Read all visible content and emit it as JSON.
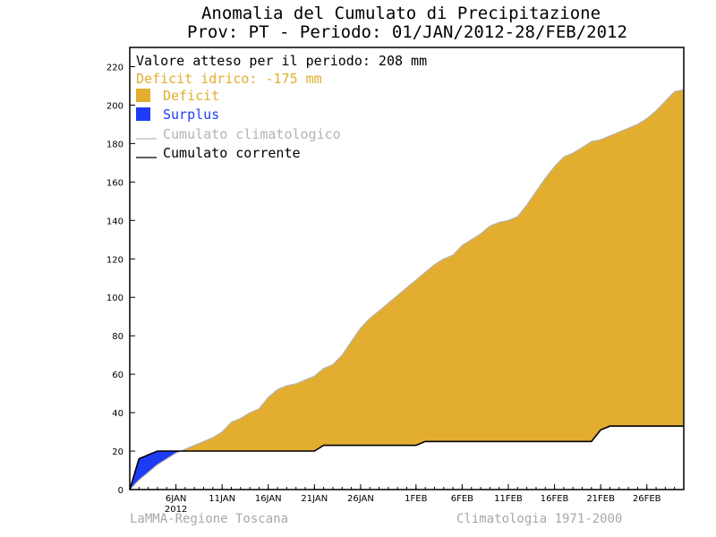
{
  "chart_data": {
    "type": "area",
    "title": "Anomalia del Cumulato di Precipitazione",
    "subtitle": "Prov: PT - Periodo: 01/JAN/2012-28/FEB/2012",
    "expected_text": "Valore atteso per il periodo: 208 mm",
    "deficit_text": "Deficit idrico: -175 mm",
    "legend": [
      {
        "label": "Deficit",
        "color": "#e3ad2f",
        "kind": "box"
      },
      {
        "label": "Surplus",
        "color": "#1e3cf5",
        "kind": "box"
      },
      {
        "label": "Cumulato climatologico",
        "color": "#b4b4b4",
        "kind": "line"
      },
      {
        "label": "Cumulato corrente",
        "color": "#000000",
        "kind": "line"
      }
    ],
    "yticks": [
      0,
      20,
      40,
      60,
      80,
      100,
      120,
      140,
      160,
      180,
      200,
      220
    ],
    "ylim": [
      0,
      230
    ],
    "xlim": [
      1,
      60
    ],
    "xticks": [
      {
        "day": 6,
        "label": "6JAN",
        "sub": "2012"
      },
      {
        "day": 11,
        "label": "11JAN"
      },
      {
        "day": 16,
        "label": "16JAN"
      },
      {
        "day": 21,
        "label": "21JAN"
      },
      {
        "day": 26,
        "label": "26JAN"
      },
      {
        "day": 32,
        "label": "1FEB"
      },
      {
        "day": 37,
        "label": "6FEB"
      },
      {
        "day": 42,
        "label": "11FEB"
      },
      {
        "day": 47,
        "label": "16FEB"
      },
      {
        "day": 52,
        "label": "21FEB"
      },
      {
        "day": 57,
        "label": "26FEB"
      }
    ],
    "climatological": [
      [
        1,
        0
      ],
      [
        2,
        5
      ],
      [
        3,
        9
      ],
      [
        4,
        13
      ],
      [
        5,
        16
      ],
      [
        6,
        19
      ],
      [
        7,
        21
      ],
      [
        8,
        23
      ],
      [
        9,
        25
      ],
      [
        10,
        27
      ],
      [
        11,
        30
      ],
      [
        12,
        35
      ],
      [
        13,
        37
      ],
      [
        14,
        40
      ],
      [
        15,
        42
      ],
      [
        16,
        48
      ],
      [
        17,
        52
      ],
      [
        18,
        54
      ],
      [
        19,
        55
      ],
      [
        20,
        57
      ],
      [
        21,
        59
      ],
      [
        22,
        63
      ],
      [
        23,
        65
      ],
      [
        24,
        70
      ],
      [
        25,
        77
      ],
      [
        26,
        84
      ],
      [
        27,
        89
      ],
      [
        28,
        93
      ],
      [
        29,
        97
      ],
      [
        30,
        101
      ],
      [
        31,
        105
      ],
      [
        32,
        109
      ],
      [
        33,
        113
      ],
      [
        34,
        117
      ],
      [
        35,
        120
      ],
      [
        36,
        122
      ],
      [
        37,
        127
      ],
      [
        38,
        130
      ],
      [
        39,
        133
      ],
      [
        40,
        137
      ],
      [
        41,
        139
      ],
      [
        42,
        140
      ],
      [
        43,
        142
      ],
      [
        44,
        148
      ],
      [
        45,
        155
      ],
      [
        46,
        162
      ],
      [
        47,
        168
      ],
      [
        48,
        173
      ],
      [
        49,
        175
      ],
      [
        50,
        178
      ],
      [
        51,
        181
      ],
      [
        52,
        182
      ],
      [
        53,
        184
      ],
      [
        54,
        186
      ],
      [
        55,
        188
      ],
      [
        56,
        190
      ],
      [
        57,
        193
      ],
      [
        58,
        197
      ],
      [
        59,
        202
      ],
      [
        60,
        207
      ],
      [
        61,
        208
      ]
    ],
    "current": [
      [
        1,
        0
      ],
      [
        2,
        16
      ],
      [
        3,
        18
      ],
      [
        4,
        20
      ],
      [
        5,
        20
      ],
      [
        6,
        20
      ],
      [
        7,
        20
      ],
      [
        8,
        20
      ],
      [
        9,
        20
      ],
      [
        10,
        20
      ],
      [
        11,
        20
      ],
      [
        12,
        20
      ],
      [
        13,
        20
      ],
      [
        14,
        20
      ],
      [
        15,
        20
      ],
      [
        16,
        20
      ],
      [
        17,
        20
      ],
      [
        18,
        20
      ],
      [
        19,
        20
      ],
      [
        20,
        20
      ],
      [
        21,
        20
      ],
      [
        22,
        23
      ],
      [
        23,
        23
      ],
      [
        24,
        23
      ],
      [
        25,
        23
      ],
      [
        26,
        23
      ],
      [
        27,
        23
      ],
      [
        28,
        23
      ],
      [
        29,
        23
      ],
      [
        30,
        23
      ],
      [
        31,
        23
      ],
      [
        32,
        23
      ],
      [
        33,
        25
      ],
      [
        34,
        25
      ],
      [
        35,
        25
      ],
      [
        36,
        25
      ],
      [
        37,
        25
      ],
      [
        38,
        25
      ],
      [
        39,
        25
      ],
      [
        40,
        25
      ],
      [
        41,
        25
      ],
      [
        42,
        25
      ],
      [
        43,
        25
      ],
      [
        44,
        25
      ],
      [
        45,
        25
      ],
      [
        46,
        25
      ],
      [
        47,
        25
      ],
      [
        48,
        25
      ],
      [
        49,
        25
      ],
      [
        50,
        25
      ],
      [
        51,
        25
      ],
      [
        52,
        31
      ],
      [
        53,
        33
      ],
      [
        54,
        33
      ],
      [
        55,
        33
      ],
      [
        56,
        33
      ],
      [
        57,
        33
      ],
      [
        58,
        33
      ],
      [
        59,
        33
      ],
      [
        60,
        33
      ],
      [
        61,
        33
      ]
    ]
  },
  "footer": {
    "left": "LaMMA-Regione Toscana",
    "right": "Climatologia 1971-2000"
  }
}
